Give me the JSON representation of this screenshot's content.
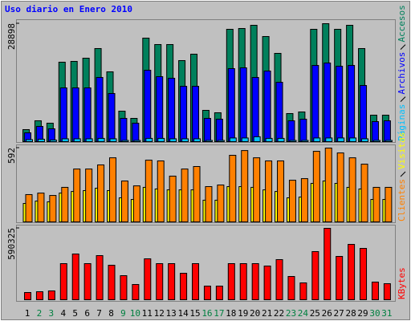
{
  "chart_data": [
    {
      "type": "bar",
      "title": "Uso diario en Enero 2010",
      "series": [
        {
          "name": "Accesos",
          "color": "#00805c",
          "values": [
            2949,
            5111,
            4522,
            19463,
            19659,
            20445,
            22805,
            17103,
            7470,
            5701,
            25360,
            23787,
            23787,
            19855,
            21428,
            7667,
            7077,
            27522,
            27718,
            28505,
            25753,
            21625,
            6881,
            7274,
            27522,
            28898,
            27522,
            28505,
            22805,
            6487,
            6487
          ]
        },
        {
          "name": "Archivos",
          "color": "#0000ff",
          "values": [
            2162,
            3735,
            3145,
            13171,
            13171,
            13171,
            15727,
            11795,
            5701,
            4522,
            17496,
            15924,
            15530,
            13565,
            13565,
            5701,
            5504,
            17889,
            18086,
            15727,
            17300,
            14547,
            5111,
            5504,
            18676,
            19265,
            18479,
            18676,
            13761,
            4915,
            5111
          ]
        },
        {
          "name": "Páginas",
          "color": "#00c0ff",
          "values": [
            500,
            600,
            400,
            700,
            700,
            700,
            800,
            700,
            300,
            300,
            800,
            800,
            700,
            700,
            700,
            300,
            300,
            900,
            900,
            1200,
            800,
            800,
            300,
            300,
            900,
            900,
            900,
            900,
            700,
            300,
            300
          ]
        }
      ],
      "ylim": [
        0,
        28898
      ],
      "yticks": [
        28898
      ]
    },
    {
      "type": "bar",
      "series": [
        {
          "name": "Visitas",
          "color": "#ffff00",
          "values": [
            148,
            167,
            161,
            231,
            244,
            251,
            270,
            251,
            193,
            180,
            277,
            264,
            257,
            257,
            257,
            174,
            174,
            283,
            283,
            277,
            257,
            244,
            193,
            199,
            309,
            328,
            309,
            277,
            264,
            180,
            180
          ]
        },
        {
          "name": "Clientes",
          "color": "#ff8000",
          "values": [
            219,
            231,
            212,
            277,
            424,
            424,
            457,
            514,
            328,
            289,
            495,
            489,
            367,
            424,
            444,
            283,
            296,
            534,
            572,
            514,
            489,
            489,
            334,
            347,
            566,
            592,
            553,
            514,
            463,
            277,
            277
          ]
        }
      ],
      "ylim": [
        0,
        592
      ],
      "yticks": [
        592
      ]
    },
    {
      "type": "bar",
      "categories": [
        "1",
        "2",
        "3",
        "4",
        "5",
        "6",
        "7",
        "8",
        "9",
        "10",
        "11",
        "12",
        "13",
        "14",
        "15",
        "16",
        "17",
        "18",
        "19",
        "20",
        "21",
        "22",
        "23",
        "24",
        "25",
        "26",
        "27",
        "28",
        "29",
        "30",
        "31"
      ],
      "category_colors": [
        "#000000",
        "#008040",
        "#008040",
        "#000000",
        "#000000",
        "#000000",
        "#000000",
        "#000000",
        "#008040",
        "#008040",
        "#000000",
        "#000000",
        "#000000",
        "#000000",
        "#000000",
        "#008040",
        "#008040",
        "#000000",
        "#000000",
        "#000000",
        "#000000",
        "#000000",
        "#008040",
        "#008040",
        "#000000",
        "#000000",
        "#000000",
        "#000000",
        "#000000",
        "#008040",
        "#008040"
      ],
      "series": [
        {
          "name": "KBytes",
          "color": "#ff0000",
          "values": [
            59697,
            66330,
            72963,
            298485,
            378081,
            298485,
            364815,
            285219,
            198990,
            126027,
            338283,
            298485,
            298485,
            218889,
            298485,
            112761,
            112761,
            298485,
            298485,
            298485,
            278586,
            331650,
            192357,
            139293,
            397980,
            590325,
            358182,
            457677,
            424512,
            145926,
            132660
          ]
        }
      ],
      "ylim": [
        0,
        590325
      ],
      "yticks": [
        590325
      ]
    }
  ]
}
